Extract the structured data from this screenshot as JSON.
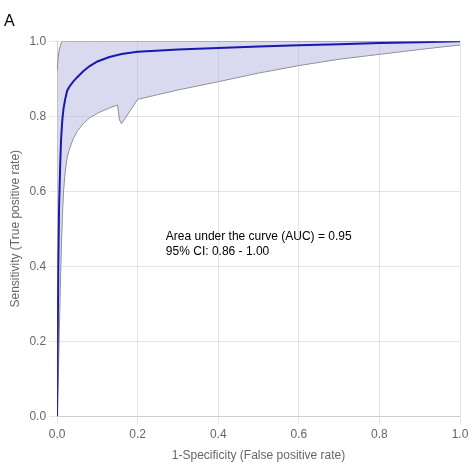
{
  "chart_data": {
    "type": "line",
    "title": "A",
    "xlabel": "1-Specificity (False positive rate)",
    "ylabel": "Sensitivity (True positive rate)",
    "annotation": {
      "text": [
        "Area under the curve (AUC) = 0.95",
        "95% CI: 0.86 - 1.00"
      ],
      "x": 0.27,
      "y": 0.46
    },
    "xlim": [
      0.0,
      1.0
    ],
    "ylim": [
      0.0,
      1.0
    ],
    "xticks": [
      {
        "value": 0.0,
        "label": "0.0"
      },
      0.2,
      0.4,
      0.6,
      0.8,
      {
        "value": 1.0,
        "label": "1.0"
      }
    ],
    "yticks": [
      {
        "value": 0.0,
        "label": "0.0"
      },
      0.2,
      0.4,
      0.6,
      0.8,
      {
        "value": 1.0,
        "label": "1.0"
      }
    ],
    "grid": true,
    "series": [
      {
        "type": "band",
        "color": "#aaaadd",
        "upper": {
          "color": "#888888",
          "x": [
            0.0,
            0.003,
            0.005,
            0.008,
            0.01,
            0.013,
            0.016,
            0.02,
            0.025,
            0.03,
            0.04,
            0.05,
            0.065,
            0.08,
            0.1,
            0.2,
            0.4,
            0.6,
            0.8,
            1.0
          ],
          "values": [
            0.92,
            0.96,
            0.975,
            0.988,
            0.995,
            1.0,
            1.0,
            1.0,
            1.0,
            1.0,
            1.0,
            1.0,
            1.0,
            1.0,
            1.0,
            1.0,
            1.0,
            1.0,
            1.0,
            1.0
          ]
        },
        "lower": {
          "color": "#888888",
          "x": [
            0.0,
            0.003,
            0.005,
            0.008,
            0.01,
            0.013,
            0.016,
            0.02,
            0.025,
            0.03,
            0.04,
            0.05,
            0.065,
            0.08,
            0.1,
            0.13,
            0.15,
            0.155,
            0.16,
            0.2,
            0.3,
            0.4,
            0.5,
            0.6,
            0.7,
            0.8,
            0.9,
            1.0
          ],
          "values": [
            0.0,
            0.1,
            0.2,
            0.34,
            0.43,
            0.53,
            0.6,
            0.65,
            0.69,
            0.71,
            0.74,
            0.76,
            0.78,
            0.795,
            0.808,
            0.822,
            0.83,
            0.79,
            0.78,
            0.845,
            0.87,
            0.892,
            0.915,
            0.935,
            0.952,
            0.965,
            0.978,
            0.99
          ]
        }
      },
      {
        "type": "line",
        "color": "#1a1aaa",
        "x": [
          0.0,
          0.003,
          0.005,
          0.008,
          0.01,
          0.013,
          0.016,
          0.02,
          0.025,
          0.03,
          0.04,
          0.05,
          0.065,
          0.08,
          0.1,
          0.13,
          0.16,
          0.2,
          0.3,
          0.4,
          0.5,
          0.6,
          0.7,
          0.8,
          0.9,
          1.0
        ],
        "values": [
          0.0,
          0.4,
          0.56,
          0.68,
          0.74,
          0.79,
          0.82,
          0.845,
          0.868,
          0.878,
          0.892,
          0.904,
          0.92,
          0.933,
          0.946,
          0.958,
          0.966,
          0.972,
          0.978,
          0.982,
          0.986,
          0.989,
          0.992,
          0.995,
          0.997,
          1.0
        ]
      }
    ]
  }
}
